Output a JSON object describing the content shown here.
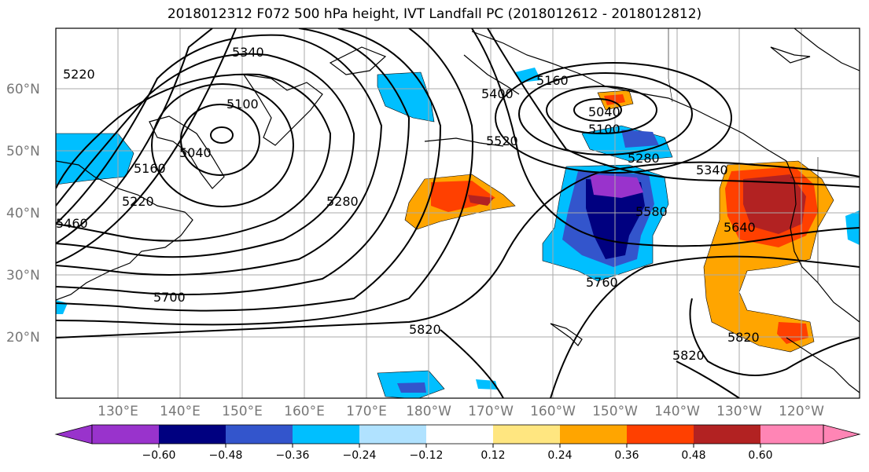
{
  "title": "2018012312 F072 500 hPa height, IVT Landfall PC (2018012612 - 2018012812)",
  "lat_labels": [
    "60°N",
    "50°N",
    "40°N",
    "30°N",
    "20°N"
  ],
  "lon_labels": [
    "130°E",
    "140°E",
    "150°E",
    "160°E",
    "170°E",
    "180°W",
    "170°W",
    "160°W",
    "150°W",
    "140°W",
    "130°W",
    "120°W"
  ],
  "contour_labels": [
    "5220",
    "5340",
    "5100",
    "5040",
    "5160",
    "5220",
    "5460",
    "5280",
    "5400",
    "5520",
    "5160",
    "5040",
    "5100",
    "5280",
    "5340",
    "5580",
    "5640",
    "5700",
    "5760",
    "5820",
    "5820",
    "5820"
  ],
  "colorbar": {
    "ticks": [
      "−0.60",
      "−0.48",
      "−0.36",
      "−0.24",
      "−0.12",
      "0.12",
      "0.24",
      "0.36",
      "0.48",
      "0.60"
    ],
    "colors": [
      "#9933cc",
      "#000080",
      "#3355cc",
      "#00bfff",
      "#b0e2ff",
      "#ffffff",
      "#ffe680",
      "#ffa500",
      "#ff4000",
      "#b22222",
      "#ff85b5"
    ]
  }
}
